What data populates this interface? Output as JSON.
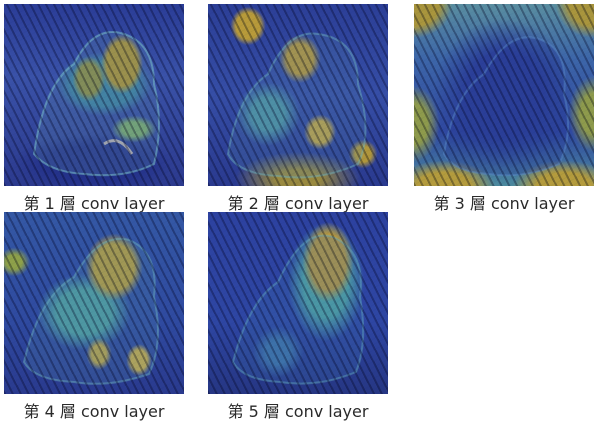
{
  "panels": [
    {
      "caption": "第 1 層 conv layer",
      "icon": "tiger-heatmap-layer-1"
    },
    {
      "caption": "第 2 層 conv layer",
      "icon": "tiger-heatmap-layer-2"
    },
    {
      "caption": "第 3 層 conv layer",
      "icon": "tiger-heatmap-layer-3"
    },
    {
      "caption": "第 4 層 conv layer",
      "icon": "tiger-heatmap-layer-4"
    },
    {
      "caption": "第 5 層 conv layer",
      "icon": "tiger-heatmap-layer-5"
    }
  ],
  "colors": {
    "low_activation": "#2a3e9c",
    "mid_activation": "#4d9aa0",
    "high_activation": "#b89a3a"
  }
}
